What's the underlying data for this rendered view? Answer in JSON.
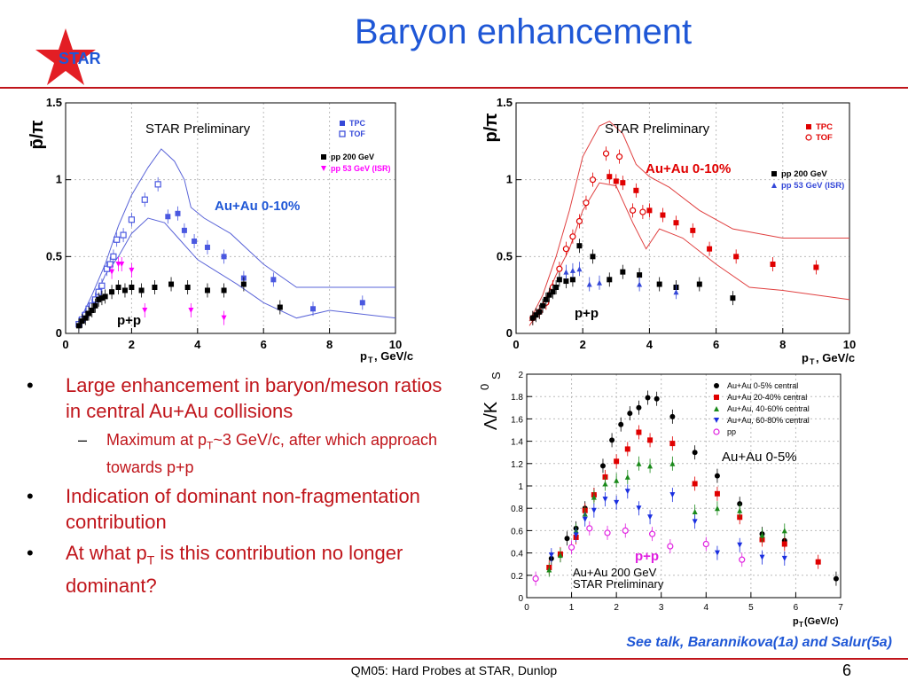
{
  "slide": {
    "title": "Baryon enhancement",
    "logo_text": "STAR",
    "footer": "QM05: Hard Probes at STAR, Dunlop",
    "page": "6",
    "see_talk": "See talk, Barannikova(1a) and Salur(5a)",
    "colors": {
      "title": "#1f57d6",
      "accent": "#c0151b"
    }
  },
  "bullets": [
    {
      "text": "Large enhancement in baryon/meson ratios in central Au+Au collisions",
      "sub": [
        {
          "pre": "Maximum at p",
          "sub": "T",
          "post": "~3 GeV/c, after which approach towards p+p"
        }
      ]
    },
    {
      "text": "Indication of dominant non-fragmentation contribution",
      "sub": []
    },
    {
      "pre": "At what p",
      "subscript": "T",
      "post": " is this contribution no longer dominant?"
    }
  ],
  "chart_data": [
    {
      "type": "scatter",
      "ylabel": "p̄/π",
      "ylabel_sup": "−",
      "xlabel": "p",
      "xlabel_sub": "T",
      "xlabel_post": ", GeV/c",
      "xlim": [
        0,
        10
      ],
      "ylim": [
        0,
        1.5
      ],
      "xticks": [
        "0",
        "2",
        "4",
        "6",
        "8",
        "10"
      ],
      "yticks": [
        "0",
        "0.5",
        "1",
        "1.5"
      ],
      "preliminary": "STAR Preliminary",
      "label_auau": "Au+Au 0-10%",
      "label_pp": "p+p",
      "legend": [
        {
          "name": "TPC",
          "color": "#3548d8",
          "marker": "square"
        },
        {
          "name": "TOF",
          "color": "#3548d8",
          "marker": "open-square"
        },
        {
          "name": "pp 200 GeV",
          "color": "#000000",
          "marker": "square"
        },
        {
          "name": "pp 53 GeV (ISR)",
          "color": "#ff00ff",
          "marker": "triangle-down"
        }
      ],
      "band_color": "#5a64d8",
      "series": [
        {
          "name": "TPC",
          "color": "#4a58e0",
          "marker": "square",
          "x": [
            3.1,
            3.4,
            3.6,
            3.9,
            4.3,
            4.8,
            5.4,
            6.3,
            7.5,
            9.0
          ],
          "y": [
            0.76,
            0.78,
            0.67,
            0.6,
            0.56,
            0.5,
            0.36,
            0.35,
            0.16,
            0.2
          ]
        },
        {
          "name": "TOF",
          "color": "#4a58e0",
          "marker": "open-square",
          "x": [
            0.4,
            0.5,
            0.6,
            0.7,
            0.8,
            0.9,
            1.0,
            1.1,
            1.25,
            1.35,
            1.45,
            1.55,
            1.75,
            2.0,
            2.4,
            2.8
          ],
          "y": [
            0.06,
            0.09,
            0.12,
            0.16,
            0.18,
            0.22,
            0.27,
            0.31,
            0.42,
            0.45,
            0.5,
            0.61,
            0.64,
            0.74,
            0.87,
            0.97
          ]
        },
        {
          "name": "pp 200 GeV",
          "color": "#000000",
          "marker": "square",
          "x": [
            0.4,
            0.5,
            0.6,
            0.7,
            0.8,
            0.9,
            1.0,
            1.1,
            1.2,
            1.4,
            1.6,
            1.8,
            2.0,
            2.3,
            2.7,
            3.2,
            3.7,
            4.3,
            4.8,
            5.4,
            6.5
          ],
          "y": [
            0.05,
            0.08,
            0.1,
            0.13,
            0.15,
            0.18,
            0.22,
            0.23,
            0.24,
            0.27,
            0.3,
            0.28,
            0.3,
            0.28,
            0.3,
            0.32,
            0.3,
            0.28,
            0.28,
            0.32,
            0.17
          ]
        },
        {
          "name": "pp 53 GeV (ISR)",
          "color": "#ff00ff",
          "marker": "triangle-down",
          "x": [
            1.4,
            1.6,
            1.7,
            2.0,
            2.4,
            3.8,
            4.8
          ],
          "y": [
            0.4,
            0.45,
            0.45,
            0.41,
            0.15,
            0.15,
            0.1
          ]
        }
      ]
    },
    {
      "type": "scatter",
      "ylabel": "p/π",
      "xlabel": "p",
      "xlabel_sub": "T",
      "xlabel_post": ", GeV/c",
      "xlim": [
        0,
        10
      ],
      "ylim": [
        0,
        1.5
      ],
      "xticks": [
        "0",
        "2",
        "4",
        "6",
        "8",
        "10"
      ],
      "yticks": [
        "0",
        "0.5",
        "1",
        "1.5"
      ],
      "preliminary": "STAR Preliminary",
      "label_auau": "Au+Au 0-10%",
      "label_pp": "p+p",
      "legend": [
        {
          "name": "TPC",
          "color": "#e00000",
          "marker": "square"
        },
        {
          "name": "TOF",
          "color": "#e00000",
          "marker": "open-circle"
        },
        {
          "name": "pp 200 GeV",
          "color": "#000000",
          "marker": "square"
        },
        {
          "name": "pp 53 GeV (ISR)",
          "color": "#3548d8",
          "marker": "triangle-up"
        }
      ],
      "band_color": "#e04040",
      "series": [
        {
          "name": "TPC",
          "color": "#e00000",
          "marker": "square",
          "x": [
            2.8,
            3.0,
            3.2,
            3.6,
            4.0,
            4.4,
            4.8,
            5.3,
            5.8,
            6.6,
            7.7,
            9.0
          ],
          "y": [
            1.02,
            0.99,
            0.98,
            0.93,
            0.8,
            0.77,
            0.72,
            0.67,
            0.55,
            0.5,
            0.45,
            0.43
          ]
        },
        {
          "name": "TOF",
          "color": "#e00000",
          "marker": "open-circle",
          "x": [
            0.5,
            0.7,
            0.9,
            1.1,
            1.3,
            1.5,
            1.7,
            1.9,
            2.1,
            2.3,
            2.7,
            3.1,
            3.5,
            3.8
          ],
          "y": [
            0.1,
            0.14,
            0.2,
            0.3,
            0.42,
            0.55,
            0.63,
            0.73,
            0.85,
            1.0,
            1.17,
            1.15,
            0.8,
            0.79
          ]
        },
        {
          "name": "pp 200 GeV",
          "color": "#000000",
          "marker": "square",
          "x": [
            0.5,
            0.6,
            0.7,
            0.8,
            0.9,
            1.0,
            1.1,
            1.2,
            1.3,
            1.5,
            1.7,
            1.9,
            2.3,
            2.8,
            3.2,
            3.7,
            4.3,
            4.8,
            5.5,
            6.5
          ],
          "y": [
            0.1,
            0.12,
            0.14,
            0.18,
            0.22,
            0.25,
            0.27,
            0.3,
            0.35,
            0.34,
            0.35,
            0.57,
            0.5,
            0.35,
            0.4,
            0.38,
            0.32,
            0.3,
            0.32,
            0.23
          ]
        },
        {
          "name": "pp 53 GeV (ISR)",
          "color": "#3548d8",
          "marker": "triangle-up",
          "x": [
            1.5,
            1.7,
            1.9,
            2.2,
            2.5,
            3.7,
            4.8
          ],
          "y": [
            0.4,
            0.41,
            0.42,
            0.32,
            0.33,
            0.32,
            0.27
          ]
        }
      ]
    },
    {
      "type": "scatter",
      "ylabel": "Λ/K",
      "ylabel_sup": "0",
      "ylabel_sub": "S",
      "xlabel": "p",
      "xlabel_sub": "T",
      "xlabel_post": " (GeV/c)",
      "xlim": [
        0,
        7
      ],
      "ylim": [
        0,
        2
      ],
      "xticks": [
        "0",
        "1",
        "2",
        "3",
        "4",
        "5",
        "6",
        "7"
      ],
      "yticks": [
        "0",
        "0.2",
        "0.4",
        "0.6",
        "0.8",
        "1",
        "1.2",
        "1.4",
        "1.6",
        "1.8",
        "2"
      ],
      "label_auau": "Au+Au 0-5%",
      "label_pp": "p+p",
      "footnote_1": "Au+Au 200 GeV",
      "footnote_2": "STAR Preliminary",
      "legend": [
        {
          "name": "Au+Au 0-5% central",
          "color": "#000000",
          "marker": "circle"
        },
        {
          "name": "Au+Au 20-40% central",
          "color": "#e00000",
          "marker": "square"
        },
        {
          "name": "Au+Au, 40-60% central",
          "color": "#1a8a1a",
          "marker": "triangle-up"
        },
        {
          "name": "Au+Au, 60-80% central",
          "color": "#1a2ee0",
          "marker": "triangle-down"
        },
        {
          "name": "pp",
          "color": "#e020e0",
          "marker": "open-circle"
        }
      ],
      "series": [
        {
          "name": "Au+Au 0-5% central",
          "color": "#000000",
          "marker": "circle",
          "x": [
            0.55,
            0.75,
            0.9,
            1.1,
            1.3,
            1.5,
            1.7,
            1.9,
            2.1,
            2.3,
            2.5,
            2.7,
            2.9,
            3.25,
            3.75,
            4.25,
            4.75,
            5.25,
            5.75,
            6.9
          ],
          "y": [
            0.35,
            0.38,
            0.53,
            0.62,
            0.8,
            0.92,
            1.18,
            1.41,
            1.55,
            1.65,
            1.7,
            1.79,
            1.78,
            1.62,
            1.3,
            1.09,
            0.84,
            0.57,
            0.51,
            0.17
          ]
        },
        {
          "name": "Au+Au 20-40% central",
          "color": "#e00000",
          "marker": "square",
          "x": [
            0.5,
            0.75,
            1.1,
            1.3,
            1.5,
            1.75,
            2.0,
            2.25,
            2.5,
            2.75,
            3.25,
            3.75,
            4.25,
            4.75,
            5.25,
            5.75,
            6.5
          ],
          "y": [
            0.27,
            0.39,
            0.54,
            0.78,
            0.92,
            1.08,
            1.22,
            1.33,
            1.48,
            1.41,
            1.38,
            1.02,
            0.93,
            0.72,
            0.52,
            0.48,
            0.32
          ]
        },
        {
          "name": "Au+Au, 40-60% central",
          "color": "#1a8a1a",
          "marker": "triangle-up",
          "x": [
            0.5,
            0.75,
            1.1,
            1.3,
            1.5,
            1.75,
            2.0,
            2.25,
            2.5,
            2.75,
            3.25,
            3.75,
            4.25,
            4.75,
            5.25,
            5.75
          ],
          "y": [
            0.25,
            0.38,
            0.6,
            0.75,
            0.9,
            1.02,
            1.05,
            1.08,
            1.2,
            1.18,
            1.2,
            0.77,
            0.8,
            0.78,
            0.56,
            0.6
          ]
        },
        {
          "name": "Au+Au, 60-80% central",
          "color": "#1a2ee0",
          "marker": "triangle-down",
          "x": [
            0.55,
            1.1,
            1.3,
            1.5,
            1.75,
            2.0,
            2.25,
            2.5,
            2.75,
            3.25,
            3.75,
            4.25,
            4.75,
            5.25,
            5.75
          ],
          "y": [
            0.38,
            0.56,
            0.7,
            0.78,
            0.88,
            0.85,
            0.95,
            0.8,
            0.72,
            0.92,
            0.68,
            0.4,
            0.47,
            0.36,
            0.35
          ]
        },
        {
          "name": "pp",
          "color": "#e020e0",
          "marker": "open-circle",
          "x": [
            0.2,
            1.0,
            1.4,
            1.8,
            2.2,
            2.8,
            3.2,
            4.0,
            4.8
          ],
          "y": [
            0.17,
            0.45,
            0.62,
            0.58,
            0.6,
            0.57,
            0.46,
            0.48,
            0.34
          ]
        }
      ]
    }
  ]
}
